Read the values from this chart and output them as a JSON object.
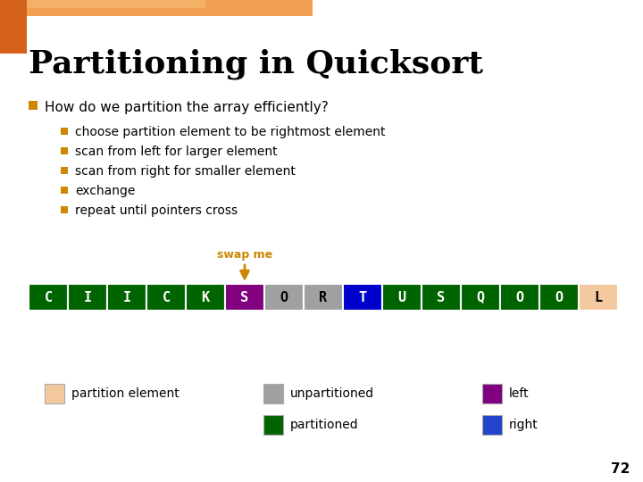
{
  "title": "Partitioning in Quicksort",
  "bullet_header": "How do we partition the array efficiently?",
  "bullets": [
    "choose partition element to be rightmost element",
    "scan from left for larger element",
    "scan from right for smaller element",
    "exchange",
    "repeat until pointers cross"
  ],
  "array_letters": [
    "C",
    "I",
    "I",
    "C",
    "K",
    "S",
    "O",
    "R",
    "T",
    "U",
    "S",
    "Q",
    "O",
    "O",
    "L"
  ],
  "array_colors": [
    "#006400",
    "#006400",
    "#006400",
    "#006400",
    "#006400",
    "#800080",
    "#a0a0a0",
    "#a0a0a0",
    "#0000cd",
    "#006400",
    "#006400",
    "#006400",
    "#006400",
    "#006400",
    "#f5c9a0"
  ],
  "swap_me_text": "swap me",
  "swap_me_color": "#cc8800",
  "swap_arrow_index": 5,
  "bg_color": "#ffffff",
  "title_color": "#000000",
  "bullet_square_color": "#cc8800",
  "legend_items": [
    {
      "label": "partition element",
      "color": "#f5c9a0"
    },
    {
      "label": "unpartitioned",
      "color": "#a0a0a0"
    },
    {
      "label": "partitioned",
      "color": "#006400"
    },
    {
      "label": "left",
      "color": "#800080"
    },
    {
      "label": "right",
      "color": "#2244cc"
    }
  ],
  "page_number": "72"
}
